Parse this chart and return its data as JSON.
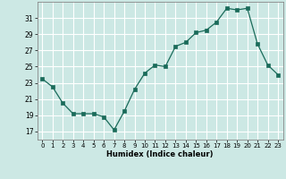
{
  "x": [
    0,
    1,
    2,
    3,
    4,
    5,
    6,
    7,
    8,
    9,
    10,
    11,
    12,
    13,
    14,
    15,
    16,
    17,
    18,
    19,
    20,
    21,
    22,
    23
  ],
  "y": [
    23.5,
    22.5,
    20.5,
    19.2,
    19.2,
    19.2,
    18.8,
    17.2,
    19.5,
    22.2,
    24.2,
    25.2,
    25.0,
    27.5,
    28.0,
    29.2,
    29.5,
    30.5,
    32.2,
    32.0,
    32.2,
    27.8,
    25.2,
    24.0
  ],
  "title": "",
  "xlabel": "Humidex (Indice chaleur)",
  "ylabel": "",
  "yticks": [
    17,
    19,
    21,
    23,
    25,
    27,
    29,
    31
  ],
  "xticks": [
    0,
    1,
    2,
    3,
    4,
    5,
    6,
    7,
    8,
    9,
    10,
    11,
    12,
    13,
    14,
    15,
    16,
    17,
    18,
    19,
    20,
    21,
    22,
    23
  ],
  "bg_color": "#cce8e4",
  "grid_color": "#ffffff",
  "line_color": "#1a6b5a",
  "marker_color": "#1a6b5a",
  "xlim": [
    -0.5,
    23.5
  ],
  "ylim": [
    16.0,
    33.0
  ]
}
